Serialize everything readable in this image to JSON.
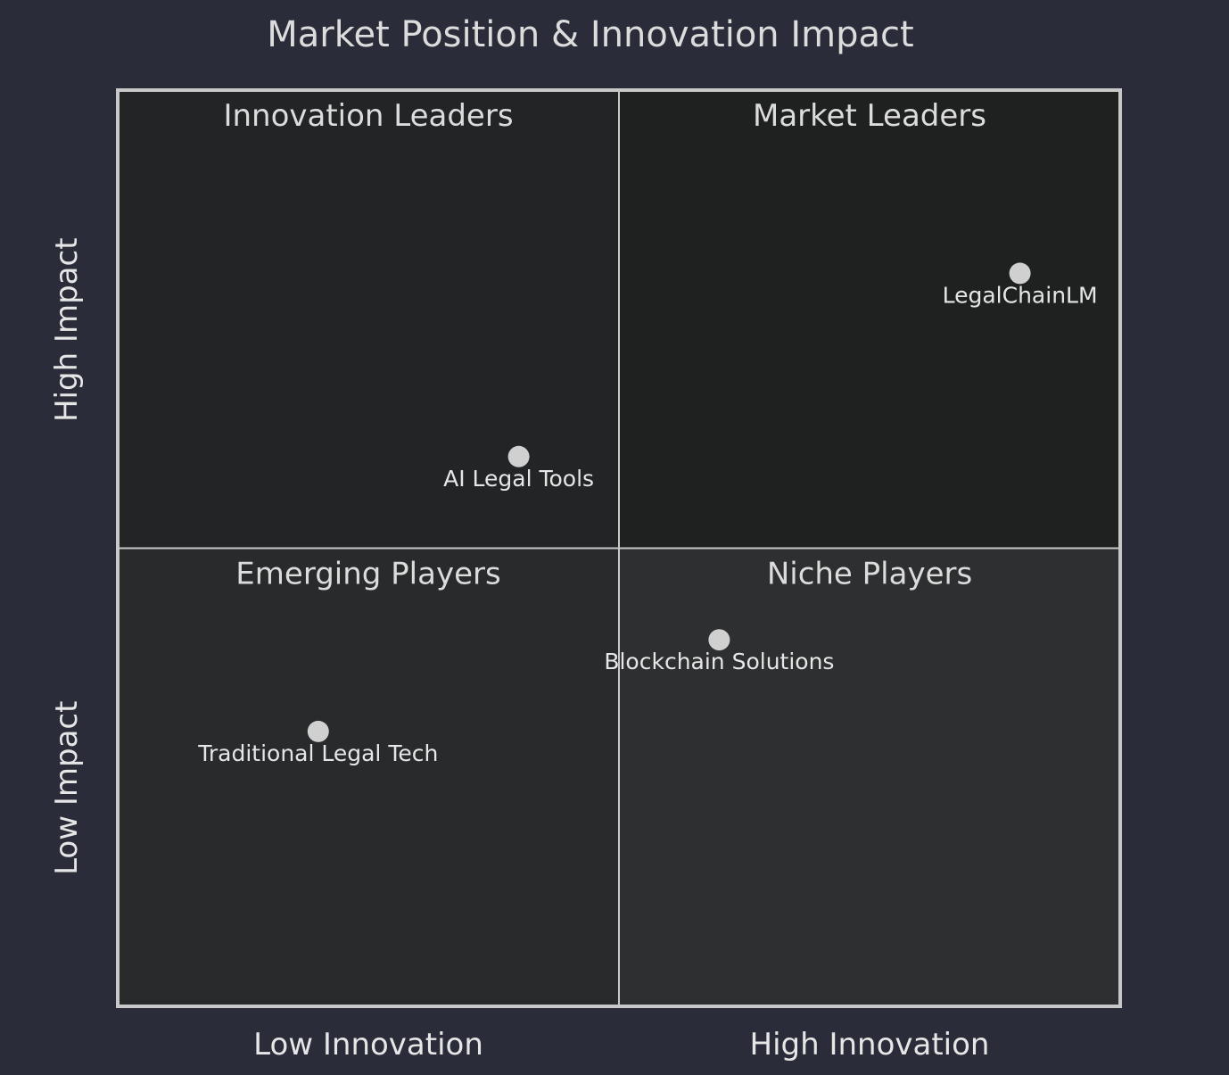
{
  "chart_data": {
    "type": "quadrant",
    "title": "Market Position & Innovation Impact",
    "x_axis": {
      "low": "Low Innovation",
      "high": "High Innovation"
    },
    "y_axis": {
      "low": "Low Impact",
      "high": "High Impact"
    },
    "xlim": [
      0,
      1
    ],
    "ylim": [
      0,
      1
    ],
    "quadrants": {
      "top_left": "Innovation Leaders",
      "top_right": "Market Leaders",
      "bottom_left": "Emerging Players",
      "bottom_right": "Niche Players"
    },
    "points": [
      {
        "label": "LegalChainLM",
        "x": 0.9,
        "y": 0.8
      },
      {
        "label": "AI Legal Tools",
        "x": 0.4,
        "y": 0.6
      },
      {
        "label": "Blockchain Solutions",
        "x": 0.6,
        "y": 0.4
      },
      {
        "label": "Traditional Legal Tech",
        "x": 0.2,
        "y": 0.3
      }
    ],
    "colors": {
      "background": "#2a2d39",
      "quadrant_top_left": "#222425",
      "quadrant_top_right": "#1f2121",
      "quadrant_bottom_left": "#282a2b",
      "quadrant_bottom_right": "#2e2f30",
      "border": "#c8c8c8",
      "point": "#d0d0d0",
      "text": "#dcdcdc"
    }
  }
}
